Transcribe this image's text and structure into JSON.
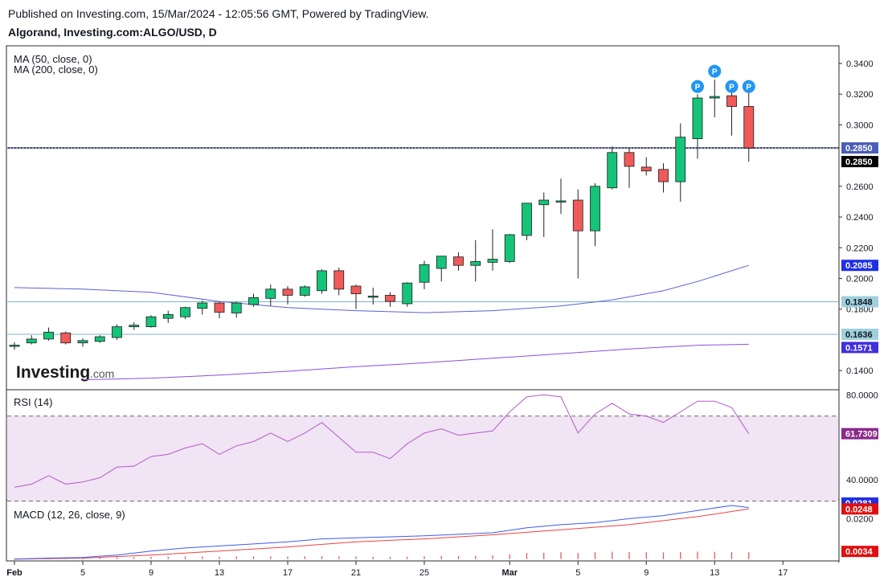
{
  "header": {
    "published": "Published on Investing.com, 15/Mar/2024 - 12:05:56 GMT, Powered by TradingView.",
    "title": "Algorand, Investing.com:ALGO/USD, D"
  },
  "brand": {
    "logo_text": "Investing",
    "logo_suffix": ".com"
  },
  "colors": {
    "up": "#14c479",
    "down": "#f05a5a",
    "wick": "#222222",
    "ma50": "#5b61d9",
    "ma200": "#8a4fe0",
    "rsi": "#b25ac8",
    "rsi_band": "#f1e4f4",
    "macd": "#3b5cf0",
    "signal": "#f04040",
    "hist": "#e05050",
    "hline": "#7fb6c8",
    "price_line": "#3a3f66"
  },
  "chart_data": [
    {
      "type": "candlestick",
      "title": "Algorand, Investing.com:ALGO/USD, D",
      "xlabel": "",
      "ylabel": "",
      "ylim": [
        0.128,
        0.351
      ],
      "y_ticks": [
        "0.3400",
        "0.3200",
        "0.3000",
        "0.2600",
        "0.2400",
        "0.2200",
        "0.2000",
        "0.1800",
        "0.1400"
      ],
      "x_ticks": [
        {
          "day": 0,
          "label": "Feb"
        },
        {
          "day": 4,
          "label": "5"
        },
        {
          "day": 8,
          "label": "9"
        },
        {
          "day": 12,
          "label": "13"
        },
        {
          "day": 16,
          "label": "17"
        },
        {
          "day": 20,
          "label": "21"
        },
        {
          "day": 24,
          "label": "25"
        },
        {
          "day": 29,
          "label": "Mar"
        },
        {
          "day": 33,
          "label": "5"
        },
        {
          "day": 37,
          "label": "9"
        },
        {
          "day": 41,
          "label": "13"
        },
        {
          "day": 45,
          "label": "17"
        }
      ],
      "candles": [
        {
          "o": 0.156,
          "h": 0.1585,
          "l": 0.1535,
          "c": 0.1565
        },
        {
          "o": 0.158,
          "h": 0.163,
          "l": 0.157,
          "c": 0.1605
        },
        {
          "o": 0.1605,
          "h": 0.168,
          "l": 0.1595,
          "c": 0.165
        },
        {
          "o": 0.1645,
          "h": 0.1655,
          "l": 0.157,
          "c": 0.158
        },
        {
          "o": 0.158,
          "h": 0.161,
          "l": 0.1555,
          "c": 0.1595
        },
        {
          "o": 0.159,
          "h": 0.163,
          "l": 0.158,
          "c": 0.162
        },
        {
          "o": 0.1615,
          "h": 0.17,
          "l": 0.16,
          "c": 0.1685
        },
        {
          "o": 0.1685,
          "h": 0.1715,
          "l": 0.1665,
          "c": 0.1695
        },
        {
          "o": 0.1685,
          "h": 0.176,
          "l": 0.168,
          "c": 0.175
        },
        {
          "o": 0.174,
          "h": 0.179,
          "l": 0.171,
          "c": 0.1765
        },
        {
          "o": 0.175,
          "h": 0.1815,
          "l": 0.1735,
          "c": 0.181
        },
        {
          "o": 0.1805,
          "h": 0.1855,
          "l": 0.1765,
          "c": 0.184
        },
        {
          "o": 0.184,
          "h": 0.185,
          "l": 0.174,
          "c": 0.178
        },
        {
          "o": 0.1775,
          "h": 0.185,
          "l": 0.1745,
          "c": 0.184
        },
        {
          "o": 0.183,
          "h": 0.19,
          "l": 0.1815,
          "c": 0.1875
        },
        {
          "o": 0.187,
          "h": 0.196,
          "l": 0.182,
          "c": 0.193
        },
        {
          "o": 0.193,
          "h": 0.195,
          "l": 0.183,
          "c": 0.189
        },
        {
          "o": 0.189,
          "h": 0.1955,
          "l": 0.188,
          "c": 0.1945
        },
        {
          "o": 0.192,
          "h": 0.206,
          "l": 0.19,
          "c": 0.205
        },
        {
          "o": 0.205,
          "h": 0.207,
          "l": 0.189,
          "c": 0.193
        },
        {
          "o": 0.195,
          "h": 0.196,
          "l": 0.18,
          "c": 0.19
        },
        {
          "o": 0.1885,
          "h": 0.194,
          "l": 0.183,
          "c": 0.1885
        },
        {
          "o": 0.189,
          "h": 0.191,
          "l": 0.1815,
          "c": 0.185
        },
        {
          "o": 0.1835,
          "h": 0.1975,
          "l": 0.1815,
          "c": 0.197
        },
        {
          "o": 0.1975,
          "h": 0.2115,
          "l": 0.193,
          "c": 0.209
        },
        {
          "o": 0.2065,
          "h": 0.214,
          "l": 0.198,
          "c": 0.2145
        },
        {
          "o": 0.214,
          "h": 0.217,
          "l": 0.205,
          "c": 0.2085
        },
        {
          "o": 0.2085,
          "h": 0.225,
          "l": 0.198,
          "c": 0.211
        },
        {
          "o": 0.2105,
          "h": 0.232,
          "l": 0.205,
          "c": 0.2125
        },
        {
          "o": 0.211,
          "h": 0.229,
          "l": 0.21,
          "c": 0.2285
        },
        {
          "o": 0.228,
          "h": 0.249,
          "l": 0.225,
          "c": 0.249
        },
        {
          "o": 0.248,
          "h": 0.256,
          "l": 0.227,
          "c": 0.251
        },
        {
          "o": 0.25,
          "h": 0.265,
          "l": 0.242,
          "c": 0.2505
        },
        {
          "o": 0.251,
          "h": 0.258,
          "l": 0.2,
          "c": 0.231
        },
        {
          "o": 0.231,
          "h": 0.262,
          "l": 0.221,
          "c": 0.26
        },
        {
          "o": 0.259,
          "h": 0.286,
          "l": 0.258,
          "c": 0.282
        },
        {
          "o": 0.282,
          "h": 0.2845,
          "l": 0.259,
          "c": 0.273
        },
        {
          "o": 0.2725,
          "h": 0.279,
          "l": 0.267,
          "c": 0.27
        },
        {
          "o": 0.271,
          "h": 0.275,
          "l": 0.256,
          "c": 0.263
        },
        {
          "o": 0.263,
          "h": 0.301,
          "l": 0.25,
          "c": 0.292
        },
        {
          "o": 0.291,
          "h": 0.32,
          "l": 0.278,
          "c": 0.3175
        },
        {
          "o": 0.3175,
          "h": 0.3295,
          "l": 0.305,
          "c": 0.3185
        },
        {
          "o": 0.319,
          "h": 0.321,
          "l": 0.293,
          "c": 0.312
        },
        {
          "o": 0.312,
          "h": 0.321,
          "l": 0.276,
          "c": 0.285
        }
      ],
      "pivots": [
        {
          "day": 40,
          "price": 0.325,
          "label": "P"
        },
        {
          "day": 41,
          "price": 0.335,
          "label": "P"
        },
        {
          "day": 42,
          "price": 0.325,
          "label": "P"
        },
        {
          "day": 43,
          "price": 0.325,
          "label": "P"
        }
      ],
      "series": [
        {
          "name": "MA (50, close, 0)",
          "points": [
            [
              0,
              0.194
            ],
            [
              4,
              0.193
            ],
            [
              8,
              0.191
            ],
            [
              12,
              0.185
            ],
            [
              16,
              0.181
            ],
            [
              20,
              0.179
            ],
            [
              24,
              0.1777
            ],
            [
              28,
              0.179
            ],
            [
              32,
              0.182
            ],
            [
              35,
              0.186
            ],
            [
              38,
              0.192
            ],
            [
              40,
              0.198
            ],
            [
              43,
              0.2085
            ]
          ]
        },
        {
          "name": "MA (200, close, 0)",
          "points": [
            [
              4,
              0.134
            ],
            [
              8,
              0.135
            ],
            [
              12,
              0.137
            ],
            [
              16,
              0.1395
            ],
            [
              20,
              0.1425
            ],
            [
              24,
              0.145
            ],
            [
              28,
              0.148
            ],
            [
              32,
              0.151
            ],
            [
              36,
              0.154
            ],
            [
              40,
              0.1565
            ],
            [
              43,
              0.1571
            ]
          ]
        }
      ],
      "legend": [
        "MA (50, close, 0)",
        "MA (200, close, 0)"
      ],
      "horizontal_lines": [
        {
          "name": "resistance",
          "value": 0.285
        },
        {
          "name": "support-1",
          "value": 0.1848
        },
        {
          "name": "support-2",
          "value": 0.1636
        }
      ],
      "price_tags": [
        "0.2850",
        "0.2850",
        "0.2085",
        "0.1848",
        "0.1636",
        "0.1571"
      ]
    },
    {
      "type": "line",
      "title": "RSI (14)",
      "ylim": [
        31,
        82
      ],
      "y_ticks": [
        "80.0000",
        "40.0000"
      ],
      "band": [
        70,
        30
      ],
      "points": [
        [
          0,
          36.5
        ],
        [
          1,
          38
        ],
        [
          2,
          42
        ],
        [
          3,
          38
        ],
        [
          4,
          39
        ],
        [
          5,
          41
        ],
        [
          6,
          46
        ],
        [
          7,
          46.5
        ],
        [
          8,
          51
        ],
        [
          9,
          52
        ],
        [
          10,
          55
        ],
        [
          11,
          57
        ],
        [
          12,
          52
        ],
        [
          13,
          56
        ],
        [
          14,
          58
        ],
        [
          15,
          62
        ],
        [
          16,
          58
        ],
        [
          17,
          62
        ],
        [
          18,
          67
        ],
        [
          19,
          60
        ],
        [
          20,
          53
        ],
        [
          21,
          53
        ],
        [
          22,
          50
        ],
        [
          23,
          57
        ],
        [
          24,
          62
        ],
        [
          25,
          64
        ],
        [
          26,
          61
        ],
        [
          27,
          62
        ],
        [
          28,
          63
        ],
        [
          29,
          72
        ],
        [
          30,
          79
        ],
        [
          31,
          80
        ],
        [
          32,
          79
        ],
        [
          33,
          62
        ],
        [
          34,
          71
        ],
        [
          35,
          76
        ],
        [
          36,
          71
        ],
        [
          37,
          70
        ],
        [
          38,
          67
        ],
        [
          39,
          72
        ],
        [
          40,
          77
        ],
        [
          41,
          77
        ],
        [
          42,
          74
        ],
        [
          43,
          61.7309
        ]
      ],
      "last_label": "61.7309"
    },
    {
      "type": "line",
      "title": "MACD (12, 26, close, 9)",
      "ylim": [
        -0.0005,
        0.0285
      ],
      "y_ticks": [
        "0.0200",
        "0.0034"
      ],
      "top_tag": "0.0281",
      "macd": [
        [
          0,
          0
        ],
        [
          2,
          0.0005
        ],
        [
          4,
          0.0008
        ],
        [
          6,
          0.002
        ],
        [
          8,
          0.004
        ],
        [
          10,
          0.0055
        ],
        [
          12,
          0.0065
        ],
        [
          14,
          0.0075
        ],
        [
          16,
          0.0085
        ],
        [
          18,
          0.01
        ],
        [
          20,
          0.0105
        ],
        [
          24,
          0.0115
        ],
        [
          28,
          0.013
        ],
        [
          30,
          0.0155
        ],
        [
          32,
          0.017
        ],
        [
          34,
          0.018
        ],
        [
          36,
          0.02
        ],
        [
          38,
          0.0215
        ],
        [
          40,
          0.024
        ],
        [
          42,
          0.0265
        ],
        [
          43,
          0.0255
        ]
      ],
      "signal": [
        [
          0,
          0
        ],
        [
          4,
          0.0005
        ],
        [
          8,
          0.002
        ],
        [
          12,
          0.004
        ],
        [
          16,
          0.006
        ],
        [
          20,
          0.0085
        ],
        [
          24,
          0.01
        ],
        [
          28,
          0.012
        ],
        [
          32,
          0.0145
        ],
        [
          36,
          0.017
        ],
        [
          40,
          0.021
        ],
        [
          43,
          0.0248
        ]
      ],
      "histogram": [
        0.0003,
        0.0004,
        0.0005,
        0.0006,
        0.0007,
        0.0008,
        0.0009,
        0.001,
        0.0011,
        0.0012,
        0.0013,
        0.0013,
        0.0012,
        0.0013,
        0.0013,
        0.0014,
        0.0013,
        0.0014,
        0.0015,
        0.0014,
        0.0013,
        0.0012,
        0.0011,
        0.0012,
        0.0014,
        0.0016,
        0.0015,
        0.0016,
        0.0018,
        0.0024,
        0.003,
        0.0032,
        0.0034,
        0.003,
        0.0034,
        0.0036,
        0.0035,
        0.0034,
        0.0033,
        0.0035,
        0.0037,
        0.0036,
        0.0035,
        0.0034
      ],
      "tags": [
        "0.0248",
        "0.0034"
      ]
    }
  ]
}
